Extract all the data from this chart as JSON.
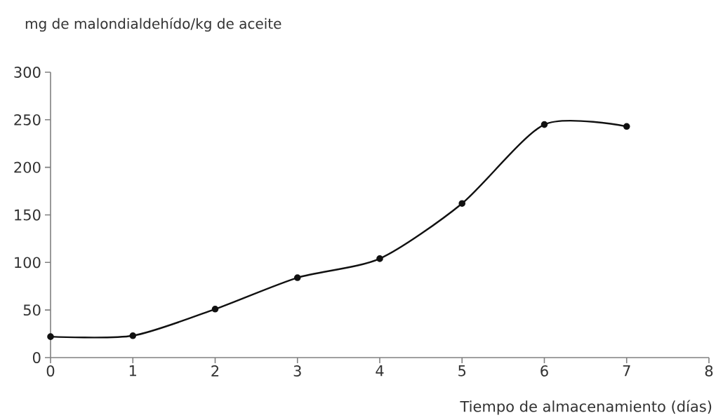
{
  "chart_data": {
    "type": "line",
    "ylabel": "mg de malondialdehído/kg de aceite",
    "xlabel": "Tiempo de almacenamiento (días)",
    "x": [
      0,
      1,
      2,
      3,
      4,
      5,
      6,
      7
    ],
    "series": [
      {
        "color": "#111111",
        "values": [
          22,
          23,
          51,
          84,
          104,
          162,
          245,
          243
        ]
      }
    ],
    "xlim": [
      0,
      8
    ],
    "xticks": [
      0,
      1,
      2,
      3,
      4,
      5,
      6,
      7,
      8
    ],
    "ylim": [
      0,
      300
    ],
    "yticks": [
      0,
      50,
      100,
      150,
      200,
      250,
      300
    ],
    "marker": "circle",
    "line_style": "solid"
  }
}
